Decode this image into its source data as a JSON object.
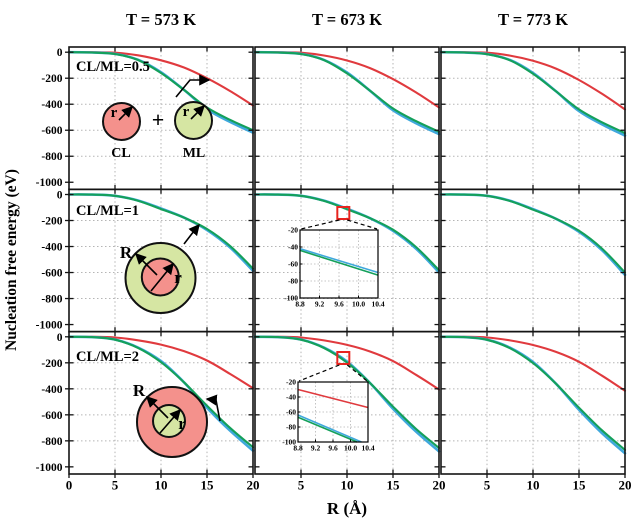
{
  "figure": {
    "diagram_labels": {
      "r": "r",
      "R": "R",
      "plus": "+",
      "cl": "CL",
      "ml": "ML"
    },
    "colors": {
      "red": "#e03a3e",
      "green": "#14a05a",
      "blue": "#3fa8dc",
      "grid": "#b5b5b5",
      "frame": "#141414",
      "marker": "#e8241f",
      "cl_fill": "#f4918c",
      "ml_fill": "#d6e6a3"
    }
  },
  "chart_data": {
    "type": "line",
    "layout": "3x3-grid",
    "xlabel": "R (Å)",
    "ylabel": "Nucleation free energy (eV)",
    "columns": [
      "T = 573 K",
      "T = 673 K",
      "T = 773 K"
    ],
    "rows": [
      "CL/ML=0.5",
      "CL/ML=1",
      "CL/ML=2"
    ],
    "xlim": [
      0,
      20
    ],
    "ylim": [
      -1055,
      40
    ],
    "x_ticks": [
      0,
      5,
      10,
      15,
      20
    ],
    "y_ticks": [
      0,
      -200,
      -400,
      -600,
      -800,
      -1000
    ],
    "grid": true,
    "x": [
      0,
      2.5,
      5,
      7.5,
      10,
      12.5,
      15,
      17.5,
      20
    ],
    "panels": [
      {
        "row": "CL/ML=0.5",
        "col": "T = 573 K",
        "series": [
          {
            "color": "red",
            "values": [
              0,
              0,
              -4,
              -24,
              -62,
              -118,
              -200,
              -298,
              -410
            ]
          },
          {
            "color": "blue",
            "values": [
              0,
              -2,
              -13,
              -58,
              -154,
              -290,
              -438,
              -536,
              -618
            ]
          },
          {
            "color": "green",
            "values": [
              0,
              -2,
              -14,
              -60,
              -160,
              -290,
              -425,
              -520,
              -600
            ]
          }
        ]
      },
      {
        "row": "CL/ML=0.5",
        "col": "T = 673 K",
        "series": [
          {
            "color": "red",
            "values": [
              0,
              0,
              -4,
              -25,
              -64,
              -122,
              -207,
              -309,
              -425
            ]
          },
          {
            "color": "blue",
            "values": [
              0,
              -2,
              -13,
              -59,
              -156,
              -296,
              -446,
              -546,
              -630
            ]
          },
          {
            "color": "green",
            "values": [
              0,
              -2,
              -14,
              -61,
              -163,
              -296,
              -433,
              -530,
              -612
            ]
          }
        ]
      },
      {
        "row": "CL/ML=0.5",
        "col": "T = 773 K",
        "series": [
          {
            "color": "red",
            "values": [
              0,
              0,
              -4,
              -26,
              -66,
              -126,
              -214,
              -320,
              -440
            ]
          },
          {
            "color": "blue",
            "values": [
              0,
              -2,
              -14,
              -60,
              -159,
              -301,
              -453,
              -555,
              -641
            ]
          },
          {
            "color": "green",
            "values": [
              0,
              -2,
              -15,
              -62,
              -166,
              -301,
              -440,
              -539,
              -622
            ]
          }
        ]
      },
      {
        "row": "CL/ML=1",
        "col": "T = 573 K",
        "series": [
          {
            "color": "blue",
            "values": [
              0,
              -1,
              -10,
              -46,
              -108,
              -178,
              -273,
              -407,
              -587
            ]
          },
          {
            "color": "green",
            "values": [
              0,
              -1,
              -10,
              -48,
              -112,
              -178,
              -265,
              -395,
              -570
            ]
          }
        ]
      },
      {
        "row": "CL/ML=1",
        "col": "T = 673 K",
        "series": [
          {
            "color": "blue",
            "values": [
              0,
              -1,
              -10,
              -47,
              -109,
              -182,
              -279,
              -416,
              -599
            ]
          },
          {
            "color": "green",
            "values": [
              0,
              -1,
              -10,
              -49,
              -114,
              -182,
              -271,
              -404,
              -582
            ]
          }
        ]
      },
      {
        "row": "CL/ML=1",
        "col": "T = 773 K",
        "series": [
          {
            "color": "blue",
            "values": [
              0,
              -1,
              -10,
              -48,
              -112,
              -187,
              -287,
              -428,
              -618
            ]
          },
          {
            "color": "green",
            "values": [
              0,
              -1,
              -10,
              -50,
              -117,
              -187,
              -279,
              -416,
              -600
            ]
          }
        ]
      },
      {
        "row": "CL/ML=2",
        "col": "T = 573 K",
        "series": [
          {
            "color": "red",
            "values": [
              0,
              0,
              -5,
              -27,
              -60,
              -110,
              -182,
              -285,
              -395
            ]
          },
          {
            "color": "blue",
            "values": [
              0,
              -2,
              -21,
              -82,
              -187,
              -350,
              -546,
              -721,
              -876
            ]
          },
          {
            "color": "green",
            "values": [
              0,
              -2,
              -22,
              -85,
              -195,
              -350,
              -530,
              -700,
              -850
            ]
          }
        ]
      },
      {
        "row": "CL/ML=2",
        "col": "T = 673 K",
        "series": [
          {
            "color": "red",
            "values": [
              0,
              0,
              -5,
              -28,
              -62,
              -113,
              -187,
              -292,
              -405
            ]
          },
          {
            "color": "blue",
            "values": [
              0,
              -2,
              -21,
              -83,
              -190,
              -355,
              -553,
              -729,
              -881
            ]
          },
          {
            "color": "green",
            "values": [
              0,
              -2,
              -22,
              -86,
              -198,
              -355,
              -537,
              -708,
              -855
            ]
          }
        ]
      },
      {
        "row": "CL/ML=2",
        "col": "T = 773 K",
        "series": [
          {
            "color": "red",
            "values": [
              0,
              0,
              -5,
              -28,
              -63,
              -116,
              -192,
              -299,
              -415
            ]
          },
          {
            "color": "blue",
            "values": [
              0,
              -2,
              -22,
              -84,
              -194,
              -361,
              -561,
              -741,
              -896
            ]
          },
          {
            "color": "green",
            "values": [
              0,
              -2,
              -23,
              -88,
              -202,
              -361,
              -545,
              -719,
              -870
            ]
          }
        ]
      }
    ],
    "insets": [
      {
        "panel_index": 4,
        "xlim": [
          8.8,
          10.4
        ],
        "ylim": [
          -100,
          -20
        ],
        "x_ticks": [
          "8.8",
          "9.2",
          "9.6",
          "10.0",
          "10.4"
        ],
        "y_ticks": [
          -20,
          -40,
          -60,
          -80,
          -100
        ],
        "lines": [
          {
            "color": "blue",
            "points": [
              [
                8.8,
                -42
              ],
              [
                10.4,
                -70
              ]
            ]
          },
          {
            "color": "green",
            "points": [
              [
                8.8,
                -44
              ],
              [
                10.4,
                -73
              ]
            ]
          }
        ],
        "marker_R": 9.6
      },
      {
        "panel_index": 7,
        "xlim": [
          8.8,
          10.4
        ],
        "ylim": [
          -100,
          -20
        ],
        "x_ticks": [
          "8.8",
          "9.2",
          "9.6",
          "10.0",
          "10.4"
        ],
        "y_ticks": [
          -20,
          -40,
          -60,
          -80,
          -100
        ],
        "lines": [
          {
            "color": "red",
            "points": [
              [
                8.8,
                -30
              ],
              [
                10.4,
                -54
              ]
            ]
          },
          {
            "color": "blue",
            "points": [
              [
                8.8,
                -64
              ],
              [
                10.25,
                -100
              ]
            ]
          },
          {
            "color": "green",
            "points": [
              [
                8.8,
                -67
              ],
              [
                10.15,
                -100
              ]
            ]
          }
        ],
        "marker_R": 9.6
      }
    ]
  }
}
